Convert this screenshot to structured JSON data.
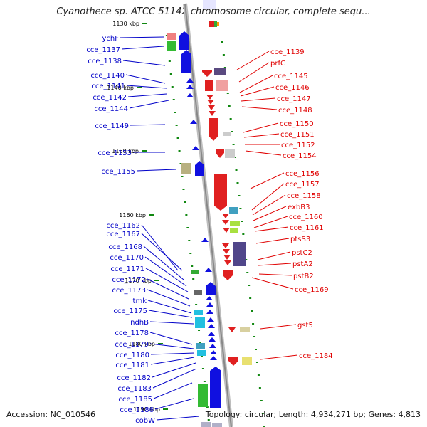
{
  "map": {
    "title": "Cyanothece sp. ATCC 51142 chromosome circular, complete sequ...",
    "accession_text": "Accession: NC_010546",
    "topology_text": "Topology: circular; Length: 4,934,271 bp; Genes: 4,813",
    "colors": {
      "left_label": "#0000c8",
      "right_label": "#e00000",
      "backbone": "#9a9a9a",
      "tick": "#118811"
    },
    "kbp_ticks": [
      "1130 kbp",
      "1140 kbp",
      "1150 kbp",
      "1160 kbp",
      "1170 kbp",
      "1180 kbp",
      "1190 kbp"
    ],
    "left_genes": [
      "ychF",
      "cce_1137",
      "cce_1138",
      "cce_1140",
      "cce_1141",
      "cce_1142",
      "cce_1144",
      "cce_1149",
      "cce_1153",
      "cce_1155",
      "cce_1162",
      "cce_1167",
      "cce_1168",
      "cce_1170",
      "cce_1171",
      "cce_1172",
      "cce_1173",
      "tmk",
      "cce_1175",
      "ndhB",
      "cce_1178",
      "cce_1179",
      "cce_1180",
      "cce_1181",
      "cce_1182",
      "cce_1183",
      "cce_1185",
      "cce_1186",
      "cobW"
    ],
    "right_genes": [
      "cce_1139",
      "prfC",
      "cce_1145",
      "cce_1146",
      "cce_1147",
      "cce_1148",
      "cce_1150",
      "cce_1151",
      "cce_1152",
      "cce_1154",
      "cce_1156",
      "cce_1157",
      "cce_1158",
      "exbB3",
      "cce_1160",
      "cce_1161",
      "ptsS3",
      "pstC2",
      "pstA2",
      "pstB2",
      "cce_1169",
      "gst5",
      "cce_1184"
    ]
  }
}
